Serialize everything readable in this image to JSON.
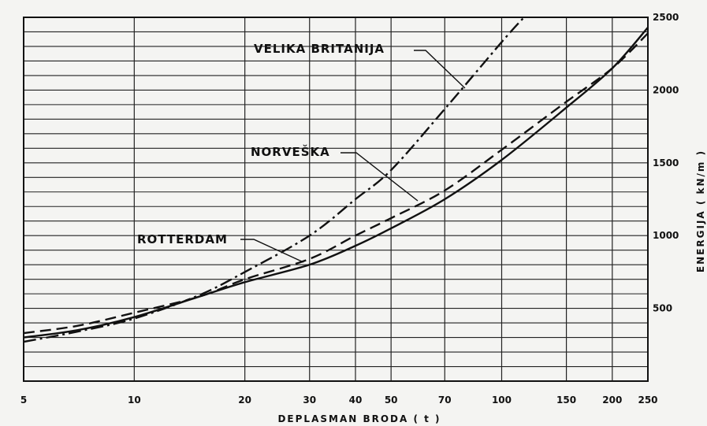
{
  "chart_data": {
    "type": "line",
    "xlabel": "DEPLASMAN BRODA ( t )",
    "ylabel": "ENERGIJA ( kN/m )",
    "xscale": "log",
    "xlim": [
      5,
      250
    ],
    "ylim": [
      0,
      2500
    ],
    "xticks": [
      {
        "value": 5,
        "label": "5"
      },
      {
        "value": 10,
        "label": "10"
      },
      {
        "value": 20,
        "label": "20"
      },
      {
        "value": 30,
        "label": "30"
      },
      {
        "value": 40,
        "label": "40"
      },
      {
        "value": 50,
        "label": "50"
      },
      {
        "value": 70,
        "label": "70"
      },
      {
        "value": 100,
        "label": "100"
      },
      {
        "value": 150,
        "label": "150"
      },
      {
        "value": 200,
        "label": "200"
      },
      {
        "value": 250,
        "label": "250"
      }
    ],
    "yticks": [
      {
        "value": 500,
        "label": "500"
      },
      {
        "value": 1000,
        "label": "1000"
      },
      {
        "value": 1500,
        "label": "1500"
      },
      {
        "value": 2000,
        "label": "2000"
      },
      {
        "value": 2500,
        "label": "2500"
      }
    ],
    "grid": true,
    "series": [
      {
        "name": "VELIKA BRITANIJA",
        "style": "dash-dot",
        "x": [
          5,
          7,
          10,
          15,
          20,
          30,
          40,
          50,
          70,
          100,
          115
        ],
        "y": [
          270,
          340,
          430,
          590,
          750,
          1000,
          1250,
          1450,
          1870,
          2330,
          2500
        ]
      },
      {
        "name": "NORVEŠKA",
        "style": "dashed",
        "x": [
          5,
          7,
          10,
          15,
          20,
          30,
          40,
          50,
          70,
          100,
          150,
          200,
          250
        ],
        "y": [
          330,
          380,
          470,
          580,
          700,
          840,
          1000,
          1120,
          1310,
          1590,
          1920,
          2150,
          2390
        ]
      },
      {
        "name": "ROTTERDAM",
        "style": "solid",
        "x": [
          5,
          7,
          10,
          15,
          20,
          30,
          40,
          50,
          70,
          100,
          150,
          200,
          250
        ],
        "y": [
          300,
          350,
          440,
          580,
          680,
          800,
          930,
          1050,
          1250,
          1520,
          1880,
          2150,
          2430
        ]
      }
    ],
    "annotations": [
      "VELIKA BRITANIJA",
      "NORVEŠKA",
      "ROTTERDAM"
    ]
  }
}
